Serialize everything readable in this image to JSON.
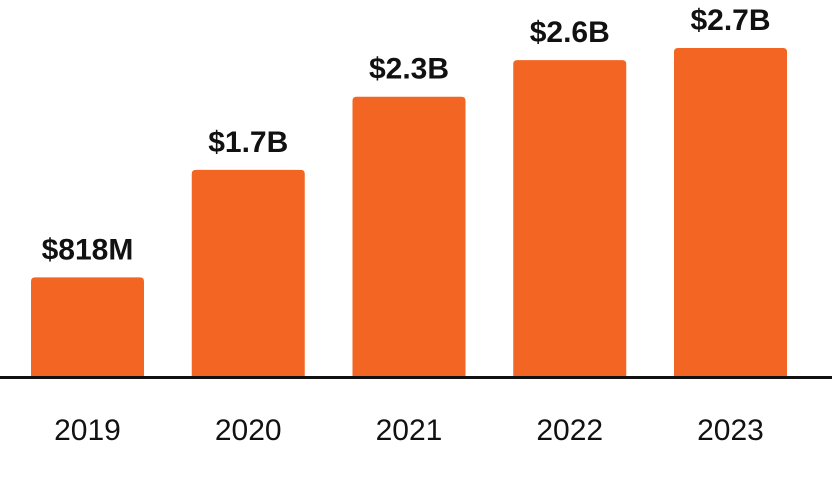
{
  "chart_data": {
    "type": "bar",
    "title": "",
    "xlabel": "",
    "ylabel": "",
    "categories": [
      "2019",
      "2020",
      "2021",
      "2022",
      "2023"
    ],
    "values": [
      0.818,
      1.7,
      2.3,
      2.6,
      2.7
    ],
    "units": "billions USD",
    "data_labels": [
      "$818M",
      "$1.7B",
      "$2.3B",
      "$2.6B",
      "$2.7B"
    ],
    "ylim": [
      0,
      2.7
    ],
    "grid": false,
    "bar_color": "#F26522",
    "axis_color": "#111111",
    "text_color": "#111111"
  }
}
